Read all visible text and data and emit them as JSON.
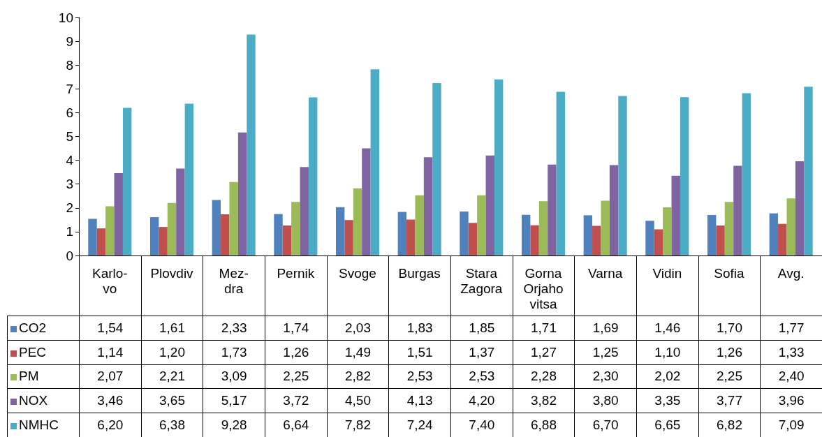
{
  "chart_data": {
    "type": "bar",
    "categories": [
      "Karlo-\nvo",
      "Plovdiv",
      "Mez-\ndra",
      "Pernik",
      "Svoge",
      "Burgas",
      "Stara\nZagora",
      "Gorna\nOrjaho\nvitsa",
      "Varna",
      "Vidin",
      "Sofia",
      "Avg."
    ],
    "series": [
      {
        "name": "CO2",
        "color": "#4f81bd",
        "values": [
          1.54,
          1.61,
          2.33,
          1.74,
          2.03,
          1.83,
          1.85,
          1.71,
          1.69,
          1.46,
          1.7,
          1.77
        ],
        "value_labels": [
          "1,54",
          "1,61",
          "2,33",
          "1,74",
          "2,03",
          "1,83",
          "1,85",
          "1,71",
          "1,69",
          "1,46",
          "1,70",
          "1,77"
        ]
      },
      {
        "name": "PEC",
        "color": "#c0504d",
        "values": [
          1.14,
          1.2,
          1.73,
          1.26,
          1.49,
          1.51,
          1.37,
          1.27,
          1.25,
          1.1,
          1.26,
          1.33
        ],
        "value_labels": [
          "1,14",
          "1,20",
          "1,73",
          "1,26",
          "1,49",
          "1,51",
          "1,37",
          "1,27",
          "1,25",
          "1,10",
          "1,26",
          "1,33"
        ]
      },
      {
        "name": "PM",
        "color": "#9bbb59",
        "values": [
          2.07,
          2.21,
          3.09,
          2.25,
          2.82,
          2.53,
          2.53,
          2.28,
          2.3,
          2.02,
          2.25,
          2.4
        ],
        "value_labels": [
          "2,07",
          "2,21",
          "3,09",
          "2,25",
          "2,82",
          "2,53",
          "2,53",
          "2,28",
          "2,30",
          "2,02",
          "2,25",
          "2,40"
        ]
      },
      {
        "name": "NOX",
        "color": "#8064a2",
        "values": [
          3.46,
          3.65,
          5.17,
          3.72,
          4.5,
          4.13,
          4.2,
          3.82,
          3.8,
          3.35,
          3.77,
          3.96
        ],
        "value_labels": [
          "3,46",
          "3,65",
          "5,17",
          "3,72",
          "4,50",
          "4,13",
          "4,20",
          "3,82",
          "3,80",
          "3,35",
          "3,77",
          "3,96"
        ]
      },
      {
        "name": "NMHC",
        "color": "#4bacc6",
        "values": [
          6.2,
          6.38,
          9.28,
          6.64,
          7.82,
          7.24,
          7.4,
          6.88,
          6.7,
          6.65,
          6.82,
          7.09
        ],
        "value_labels": [
          "6,20",
          "6,38",
          "9,28",
          "6,64",
          "7,82",
          "7,24",
          "7,40",
          "6,88",
          "6,70",
          "6,65",
          "6,82",
          "7,09"
        ]
      }
    ],
    "ylim": [
      0,
      10
    ],
    "yticks": [
      0,
      1,
      2,
      3,
      4,
      5,
      6,
      7,
      8,
      9,
      10
    ],
    "grid": false,
    "legend": "bottom"
  }
}
